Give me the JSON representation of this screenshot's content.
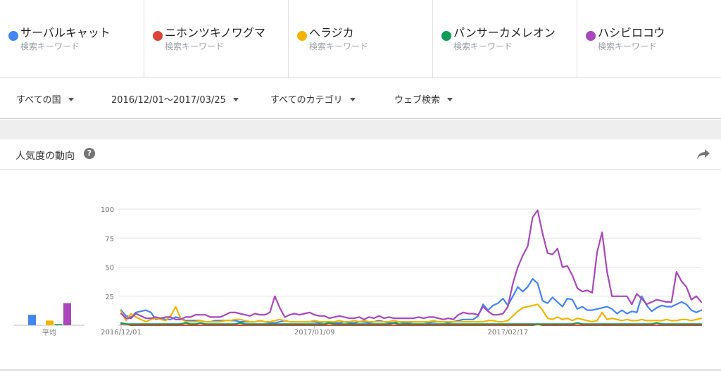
{
  "terms": [
    {
      "name": "サーバルキャット",
      "sub": "検索キーワード",
      "color": "#4285f4"
    },
    {
      "name": "ニホンツキノワグマ",
      "sub": "検索キーワード",
      "color": "#db4437"
    },
    {
      "name": "ヘラジカ",
      "sub": "検索キーワード",
      "color": "#f4b400"
    },
    {
      "name": "パンサーカメレオン",
      "sub": "検索キーワード",
      "color": "#0f9d58"
    },
    {
      "name": "ハシビロコウ",
      "sub": "検索キーワード",
      "color": "#ab47bc"
    }
  ],
  "filters": {
    "region": "すべての国",
    "date_range": "2016/12/01〜2017/03/25",
    "category": "すべてのカテゴリ",
    "search_type": "ウェブ検索"
  },
  "card": {
    "title": "人気度の動向",
    "help_glyph": "?",
    "help_icon": "help-icon",
    "share_icon": "share-icon"
  },
  "chart_data": {
    "type": "line",
    "title": "",
    "xlabel": "",
    "ylabel": "",
    "ylim": [
      0,
      100
    ],
    "y_ticks": [
      25,
      50,
      75,
      100
    ],
    "x_tick_labels": [
      {
        "label": "2016/12/01",
        "index": 0
      },
      {
        "label": "2017/01/09",
        "index": 39
      },
      {
        "label": "2017/02/17",
        "index": 78
      }
    ],
    "grid": true,
    "average_label": "平均",
    "averages": [
      {
        "name": "サーバルキャット",
        "value": 9,
        "color": "#4285f4"
      },
      {
        "name": "ニホンツキノワグマ",
        "value": 0,
        "color": "#db4437"
      },
      {
        "name": "ヘラジカ",
        "value": 4,
        "color": "#f4b400"
      },
      {
        "name": "パンサーカメレオン",
        "value": 1,
        "color": "#0f9d58"
      },
      {
        "name": "ハシビロコウ",
        "value": 19,
        "color": "#ab47bc"
      }
    ],
    "series": [
      {
        "name": "サーバルキャット",
        "color": "#4285f4",
        "values": [
          13,
          8,
          7,
          11,
          12,
          13,
          11,
          5,
          6,
          5,
          5,
          7,
          6,
          4,
          4,
          4,
          4,
          3,
          3,
          4,
          4,
          4,
          4,
          4,
          3,
          3,
          3,
          3,
          4,
          3,
          2,
          2,
          3,
          4,
          3,
          3,
          3,
          3,
          3,
          3,
          2,
          3,
          2,
          2,
          2,
          3,
          2,
          2,
          3,
          3,
          2,
          3,
          4,
          3,
          2,
          2,
          3,
          2,
          2,
          3,
          3,
          3,
          2,
          3,
          3,
          3,
          2,
          3,
          4,
          5,
          5,
          5,
          8,
          18,
          13,
          17,
          19,
          23,
          17,
          25,
          33,
          29,
          33,
          40,
          36,
          21,
          19,
          24,
          20,
          16,
          23,
          22,
          14,
          16,
          13,
          13,
          14,
          15,
          16,
          14,
          10,
          13,
          10,
          12,
          11,
          25,
          17,
          12,
          15,
          17,
          16,
          16,
          18,
          20,
          18,
          13,
          11,
          13
        ]
      },
      {
        "name": "ニホンツキノワグマ",
        "color": "#db4437",
        "values": [
          1,
          1,
          0,
          0,
          0,
          0,
          0,
          0,
          0,
          0,
          0,
          0,
          0,
          0,
          0,
          0,
          0,
          0,
          0,
          0,
          0,
          0,
          0,
          0,
          0,
          0,
          0,
          0,
          0,
          0,
          0,
          0,
          0,
          0,
          0,
          0,
          0,
          0,
          0,
          0,
          0,
          0,
          0,
          0,
          0,
          0,
          0,
          0,
          0,
          0,
          0,
          0,
          0,
          0,
          0,
          0,
          0,
          0,
          0,
          0,
          0,
          0,
          0,
          0,
          0,
          0,
          0,
          0,
          0,
          0,
          0,
          0,
          0,
          0,
          0,
          0,
          0,
          0,
          0,
          0,
          0,
          0,
          0,
          0,
          1,
          0,
          0,
          0,
          0,
          0,
          0,
          0,
          0,
          0,
          0,
          0,
          0,
          0,
          0,
          0,
          0,
          0,
          0,
          0,
          0,
          0,
          0,
          0,
          0,
          0,
          0,
          0,
          0,
          0,
          0,
          0,
          0,
          0
        ]
      },
      {
        "name": "ヘラジカ",
        "color": "#f4b400",
        "values": [
          12,
          4,
          10,
          7,
          5,
          3,
          5,
          6,
          5,
          4,
          8,
          16,
          6,
          3,
          3,
          3,
          4,
          3,
          3,
          3,
          3,
          4,
          4,
          5,
          5,
          4,
          3,
          3,
          4,
          3,
          3,
          4,
          5,
          4,
          3,
          3,
          3,
          3,
          3,
          4,
          3,
          3,
          3,
          3,
          4,
          3,
          3,
          4,
          3,
          4,
          3,
          3,
          3,
          3,
          3,
          4,
          3,
          3,
          3,
          3,
          3,
          3,
          3,
          4,
          3,
          3,
          3,
          3,
          3,
          3,
          3,
          3,
          3,
          3,
          4,
          4,
          3,
          3,
          4,
          8,
          12,
          15,
          16,
          17,
          18,
          13,
          6,
          5,
          7,
          5,
          6,
          4,
          6,
          5,
          4,
          3,
          4,
          11,
          5,
          6,
          5,
          4,
          5,
          4,
          4,
          5,
          4,
          4,
          4,
          4,
          5,
          4,
          4,
          5,
          5,
          4,
          5,
          6
        ]
      },
      {
        "name": "パンサーカメレオン",
        "color": "#0f9d58",
        "values": [
          2,
          1,
          1,
          1,
          1,
          1,
          1,
          1,
          1,
          1,
          1,
          1,
          1,
          2,
          1,
          1,
          2,
          1,
          1,
          1,
          1,
          1,
          1,
          1,
          2,
          1,
          1,
          1,
          1,
          1,
          1,
          1,
          1,
          1,
          1,
          1,
          1,
          1,
          1,
          1,
          1,
          1,
          2,
          1,
          1,
          1,
          1,
          1,
          1,
          1,
          1,
          1,
          1,
          1,
          1,
          2,
          1,
          1,
          1,
          1,
          1,
          1,
          1,
          1,
          1,
          1,
          1,
          1,
          1,
          1,
          1,
          1,
          1,
          1,
          1,
          1,
          1,
          1,
          1,
          1,
          1,
          1,
          1,
          1,
          1,
          1,
          1,
          1,
          1,
          1,
          1,
          1,
          2,
          1,
          1,
          1,
          1,
          1,
          1,
          1,
          1,
          1,
          1,
          1,
          1,
          1,
          1,
          1,
          2,
          1,
          1,
          1,
          1,
          1,
          1,
          1,
          1,
          1
        ]
      },
      {
        "name": "ハシビロコウ",
        "color": "#ab47bc",
        "values": [
          10,
          6,
          6,
          10,
          8,
          6,
          6,
          7,
          6,
          7,
          7,
          5,
          5,
          7,
          7,
          9,
          9,
          9,
          7,
          7,
          7,
          9,
          11,
          11,
          10,
          9,
          8,
          10,
          9,
          9,
          11,
          25,
          15,
          7,
          9,
          10,
          9,
          10,
          11,
          9,
          8,
          8,
          6,
          7,
          8,
          7,
          6,
          6,
          7,
          5,
          7,
          6,
          8,
          6,
          7,
          6,
          6,
          6,
          6,
          6,
          7,
          6,
          7,
          7,
          6,
          5,
          6,
          5,
          9,
          11,
          10,
          10,
          9,
          16,
          12,
          9,
          9,
          10,
          16,
          36,
          50,
          60,
          68,
          93,
          99,
          79,
          62,
          61,
          66,
          50,
          51,
          43,
          32,
          29,
          30,
          28,
          63,
          80,
          46,
          25,
          25,
          25,
          25,
          18,
          27,
          23,
          18,
          20,
          22,
          21,
          20,
          20,
          46,
          38,
          33,
          22,
          25,
          20
        ]
      }
    ]
  }
}
